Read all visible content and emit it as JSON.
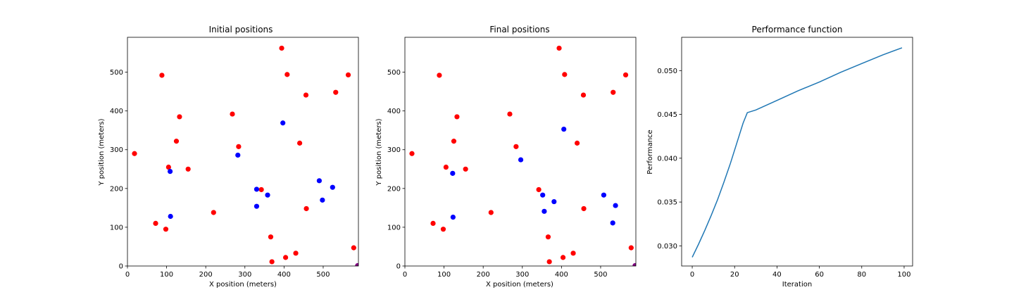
{
  "colors": {
    "red_points": "#ff0000",
    "blue_points": "#0000ff",
    "purple_point": "#800080",
    "line": "#1f77b4"
  },
  "chart_data": [
    {
      "type": "scatter",
      "title": "Initial positions",
      "xlabel": "X position (meters)",
      "ylabel": "Y position (meters)",
      "xlim": [
        0,
        590
      ],
      "ylim": [
        0,
        590
      ],
      "xticks": [
        0,
        100,
        200,
        300,
        400,
        500
      ],
      "yticks": [
        0,
        100,
        200,
        300,
        400,
        500
      ],
      "series": [
        {
          "color": "red",
          "points": [
            [
              18,
              290
            ],
            [
              88,
              492
            ],
            [
              133,
              385
            ],
            [
              125,
              322
            ],
            [
              105,
              255
            ],
            [
              155,
              250
            ],
            [
              72,
              110
            ],
            [
              98,
              95
            ],
            [
              220,
              138
            ],
            [
              268,
              392
            ],
            [
              284,
              308
            ],
            [
              342,
              197
            ],
            [
              366,
              75
            ],
            [
              369,
              11
            ],
            [
              394,
              562
            ],
            [
              408,
              494
            ],
            [
              404,
              22
            ],
            [
              430,
              33
            ],
            [
              440,
              317
            ],
            [
              456,
              441
            ],
            [
              457,
              148
            ],
            [
              532,
              448
            ],
            [
              564,
              493
            ],
            [
              578,
              47
            ]
          ]
        },
        {
          "color": "blue",
          "points": [
            [
              109,
              244
            ],
            [
              110,
              128
            ],
            [
              282,
              286
            ],
            [
              330,
              198
            ],
            [
              330,
              154
            ],
            [
              358,
              183
            ],
            [
              397,
              369
            ],
            [
              490,
              220
            ],
            [
              498,
              170
            ],
            [
              524,
              203
            ]
          ]
        },
        {
          "color": "purple",
          "points": [
            [
              588,
              1
            ]
          ]
        }
      ]
    },
    {
      "type": "scatter",
      "title": "Final positions",
      "xlabel": "X position (meters)",
      "ylabel": "Y position (meters)",
      "xlim": [
        0,
        590
      ],
      "ylim": [
        0,
        590
      ],
      "xticks": [
        0,
        100,
        200,
        300,
        400,
        500
      ],
      "yticks": [
        0,
        100,
        200,
        300,
        400,
        500
      ],
      "series": [
        {
          "color": "red",
          "points": [
            [
              18,
              290
            ],
            [
              88,
              492
            ],
            [
              133,
              385
            ],
            [
              125,
              322
            ],
            [
              105,
              255
            ],
            [
              155,
              250
            ],
            [
              72,
              110
            ],
            [
              98,
              95
            ],
            [
              220,
              138
            ],
            [
              268,
              392
            ],
            [
              284,
              308
            ],
            [
              342,
              197
            ],
            [
              366,
              75
            ],
            [
              369,
              11
            ],
            [
              394,
              562
            ],
            [
              408,
              494
            ],
            [
              404,
              22
            ],
            [
              430,
              33
            ],
            [
              440,
              317
            ],
            [
              456,
              441
            ],
            [
              457,
              148
            ],
            [
              532,
              448
            ],
            [
              564,
              493
            ],
            [
              578,
              47
            ]
          ]
        },
        {
          "color": "blue",
          "points": [
            [
              122,
              239
            ],
            [
              123,
              126
            ],
            [
              296,
              274
            ],
            [
              352,
              183
            ],
            [
              356,
              141
            ],
            [
              381,
              166
            ],
            [
              406,
              353
            ],
            [
              508,
              183
            ],
            [
              531,
              111
            ],
            [
              538,
              156
            ]
          ]
        },
        {
          "color": "purple",
          "points": [
            [
              588,
              1
            ]
          ]
        }
      ]
    },
    {
      "type": "line",
      "title": "Performance function",
      "xlabel": "Iteration",
      "ylabel": "Performance",
      "xlim": [
        -5,
        104
      ],
      "ylim": [
        0.0277,
        0.0538
      ],
      "xticks": [
        0,
        20,
        40,
        60,
        80,
        100
      ],
      "yticks": [
        0.03,
        0.035,
        0.04,
        0.045,
        0.05
      ],
      "ytick_labels": [
        "0.030",
        "0.035",
        "0.040",
        "0.045",
        "0.050"
      ],
      "series": [
        {
          "x": [
            0,
            3,
            6,
            9,
            12,
            15,
            18,
            21,
            24,
            26,
            30,
            40,
            50,
            60,
            70,
            80,
            90,
            99
          ],
          "values": [
            0.0287,
            0.0302,
            0.0318,
            0.0335,
            0.0353,
            0.0373,
            0.0394,
            0.0417,
            0.044,
            0.0452,
            0.0455,
            0.0466,
            0.0477,
            0.0487,
            0.0498,
            0.0508,
            0.0518,
            0.0526
          ]
        }
      ]
    }
  ]
}
